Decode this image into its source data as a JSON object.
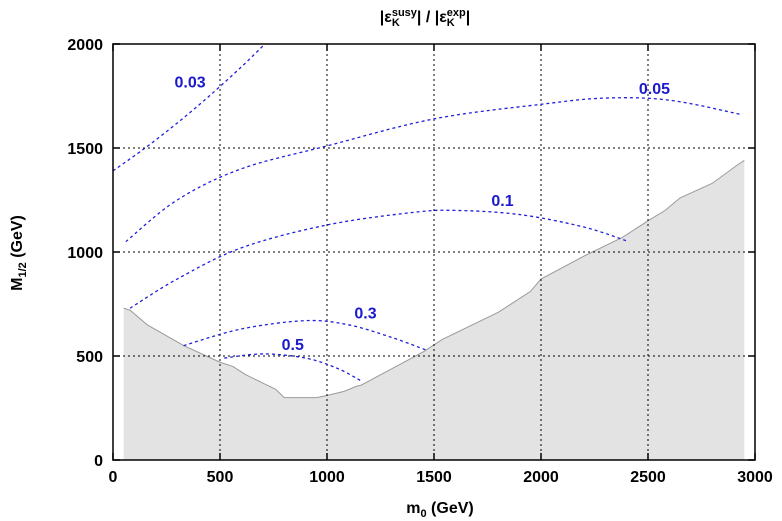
{
  "chart_data": {
    "type": "line",
    "title": {
      "base": "|ε",
      "sub1": "K",
      "sup1": "susy",
      "mid": "| / |ε",
      "sub2": "K",
      "sup2": "exp",
      "end": "|"
    },
    "xlabel": {
      "base": "m",
      "sub": "0",
      "rest": " (GeV)"
    },
    "ylabel": {
      "base": "M",
      "sub": "1/2",
      "rest": " (GeV)"
    },
    "xlim": [
      0,
      3000
    ],
    "ylim": [
      0,
      2000
    ],
    "xticks": [
      0,
      500,
      1000,
      1500,
      2000,
      2500,
      3000
    ],
    "yticks": [
      0,
      500,
      1000,
      1500,
      2000
    ],
    "grid": true,
    "excluded_region": {
      "fill": "#e3e3e3",
      "boundary": [
        [
          50,
          730
        ],
        [
          80,
          720
        ],
        [
          160,
          650
        ],
        [
          330,
          550
        ],
        [
          500,
          470
        ],
        [
          560,
          450
        ],
        [
          620,
          410
        ],
        [
          700,
          370
        ],
        [
          760,
          340
        ],
        [
          800,
          300
        ],
        [
          950,
          300
        ],
        [
          1000,
          310
        ],
        [
          1080,
          330
        ],
        [
          1140,
          355
        ],
        [
          1160,
          360
        ],
        [
          1450,
          520
        ],
        [
          1540,
          580
        ],
        [
          1700,
          660
        ],
        [
          1800,
          710
        ],
        [
          1950,
          810
        ],
        [
          2000,
          870
        ],
        [
          2200,
          980
        ],
        [
          2380,
          1070
        ],
        [
          2500,
          1150
        ],
        [
          2580,
          1200
        ],
        [
          2650,
          1260
        ],
        [
          2800,
          1330
        ],
        [
          2920,
          1420
        ],
        [
          2950,
          1440
        ]
      ]
    },
    "series": [
      {
        "name": "0.03",
        "points": [
          [
            0,
            1390
          ],
          [
            150,
            1500
          ],
          [
            300,
            1620
          ],
          [
            450,
            1750
          ],
          [
            600,
            1890
          ],
          [
            710,
            2000
          ]
        ]
      },
      {
        "name": "0.05",
        "points": [
          [
            60,
            1050
          ],
          [
            300,
            1250
          ],
          [
            600,
            1400
          ],
          [
            1000,
            1510
          ],
          [
            1500,
            1640
          ],
          [
            2000,
            1710
          ],
          [
            2300,
            1740
          ],
          [
            2600,
            1730
          ],
          [
            2940,
            1660
          ]
        ]
      },
      {
        "name": "0.1",
        "points": [
          [
            80,
            730
          ],
          [
            300,
            870
          ],
          [
            600,
            1020
          ],
          [
            1000,
            1130
          ],
          [
            1400,
            1190
          ],
          [
            1600,
            1200
          ],
          [
            1900,
            1180
          ],
          [
            2200,
            1120
          ],
          [
            2410,
            1050
          ]
        ]
      },
      {
        "name": "0.3",
        "points": [
          [
            330,
            550
          ],
          [
            600,
            630
          ],
          [
            900,
            670
          ],
          [
            1100,
            650
          ],
          [
            1300,
            590
          ],
          [
            1460,
            530
          ]
        ]
      },
      {
        "name": "0.5",
        "points": [
          [
            520,
            490
          ],
          [
            700,
            510
          ],
          [
            900,
            490
          ],
          [
            1050,
            440
          ],
          [
            1160,
            380
          ]
        ]
      }
    ],
    "contour_labels": [
      {
        "text": "0.03",
        "x": 360,
        "y": 1790
      },
      {
        "text": "0.05",
        "x": 2530,
        "y": 1760
      },
      {
        "text": "0.1",
        "x": 1820,
        "y": 1220
      },
      {
        "text": "0.3",
        "x": 1180,
        "y": 680
      },
      {
        "text": "0.5",
        "x": 840,
        "y": 530
      }
    ],
    "colors": {
      "contours": "#2020dd",
      "labels": "#1a1acc",
      "excluded": "#e3e3e3",
      "boundary": "#9a9a9a"
    }
  }
}
